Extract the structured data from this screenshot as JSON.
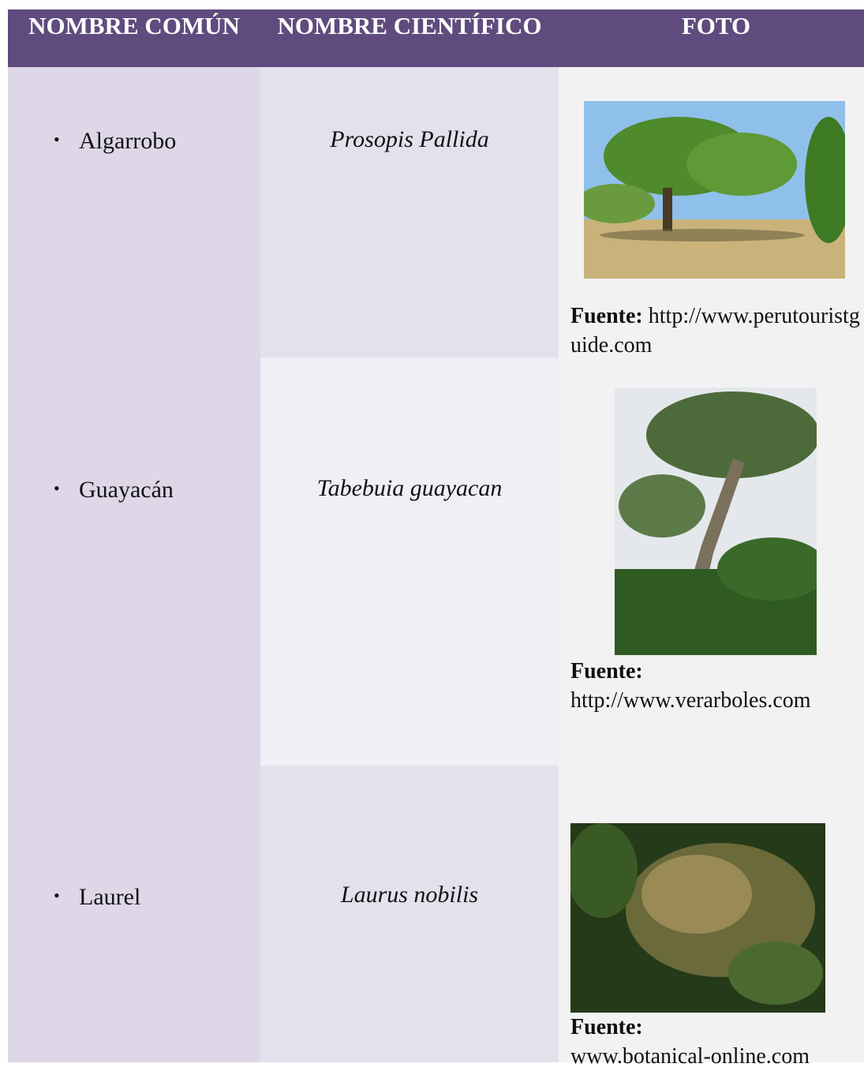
{
  "header": {
    "columns": [
      "NOMBRE COMÚN",
      "NOMBRE CIENTÍFICO",
      "FOTO"
    ]
  },
  "table": {
    "rows": [
      {
        "common_name": "Algarrobo",
        "scientific_name": "Prosopis Pallida",
        "source_label": "Fuente:",
        "source_url": "http://www.perutouristguide.com"
      },
      {
        "common_name": "Guayacán",
        "scientific_name": "Tabebuia guayacan",
        "source_label": "Fuente:",
        "source_url": "http://www.verarboles.com"
      },
      {
        "common_name": "Laurel",
        "scientific_name": "Laurus nobilis",
        "source_label": "Fuente:",
        "source_url": "www.botanical-online.com"
      }
    ]
  }
}
